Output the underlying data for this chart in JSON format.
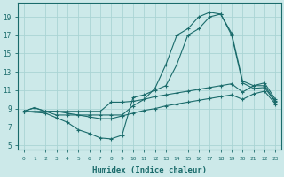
{
  "title": "",
  "xlabel": "Humidex (Indice chaleur)",
  "ylabel": "",
  "background_color": "#cce9e9",
  "grid_color": "#aad4d4",
  "line_color": "#1a6b6b",
  "xlim": [
    -0.5,
    23.5
  ],
  "ylim": [
    4.5,
    20.5
  ],
  "xticks": [
    0,
    1,
    2,
    3,
    4,
    5,
    6,
    7,
    8,
    9,
    10,
    11,
    12,
    13,
    14,
    15,
    16,
    17,
    18,
    19,
    20,
    21,
    22,
    23
  ],
  "yticks": [
    5,
    7,
    9,
    11,
    13,
    15,
    17,
    19
  ],
  "lines": [
    {
      "x": [
        0,
        1,
        2,
        3,
        4,
        5,
        6,
        7,
        8,
        9,
        10,
        11,
        12,
        13,
        14,
        15,
        16,
        17,
        18,
        19,
        20,
        21,
        22,
        23
      ],
      "y": [
        8.7,
        9.1,
        8.7,
        8.3,
        8.3,
        8.3,
        8.3,
        8.3,
        8.3,
        8.3,
        9.3,
        10.0,
        11.2,
        13.8,
        17.0,
        17.7,
        19.0,
        19.5,
        19.3,
        17.2,
        12.0,
        11.5,
        11.5,
        9.8
      ]
    },
    {
      "x": [
        0,
        2,
        3,
        4,
        5,
        6,
        7,
        8,
        9,
        10,
        11,
        12,
        13,
        14,
        15,
        16,
        17,
        18,
        19,
        20,
        21,
        22,
        23
      ],
      "y": [
        8.7,
        8.5,
        8.0,
        7.5,
        6.7,
        6.3,
        5.8,
        5.7,
        6.1,
        10.2,
        10.5,
        11.0,
        11.5,
        13.8,
        17.0,
        17.7,
        19.0,
        19.3,
        17.0,
        11.8,
        11.2,
        11.3,
        9.7
      ]
    },
    {
      "x": [
        0,
        1,
        2,
        3,
        4,
        5,
        6,
        7,
        8,
        9,
        10,
        11,
        12,
        13,
        14,
        15,
        16,
        17,
        18,
        19,
        20,
        21,
        22,
        23
      ],
      "y": [
        8.7,
        9.1,
        8.7,
        8.7,
        8.7,
        8.7,
        8.7,
        8.7,
        9.7,
        9.7,
        9.8,
        10.0,
        10.3,
        10.5,
        10.7,
        10.9,
        11.1,
        11.3,
        11.5,
        11.7,
        10.8,
        11.5,
        11.8,
        10.0
      ]
    },
    {
      "x": [
        0,
        1,
        2,
        3,
        4,
        5,
        6,
        7,
        8,
        9,
        10,
        11,
        12,
        13,
        14,
        15,
        16,
        17,
        18,
        19,
        20,
        21,
        22,
        23
      ],
      "y": [
        8.7,
        8.7,
        8.7,
        8.7,
        8.5,
        8.3,
        8.1,
        7.9,
        7.9,
        8.2,
        8.5,
        8.8,
        9.0,
        9.3,
        9.5,
        9.7,
        9.9,
        10.1,
        10.3,
        10.5,
        10.0,
        10.6,
        10.9,
        9.5
      ]
    }
  ]
}
